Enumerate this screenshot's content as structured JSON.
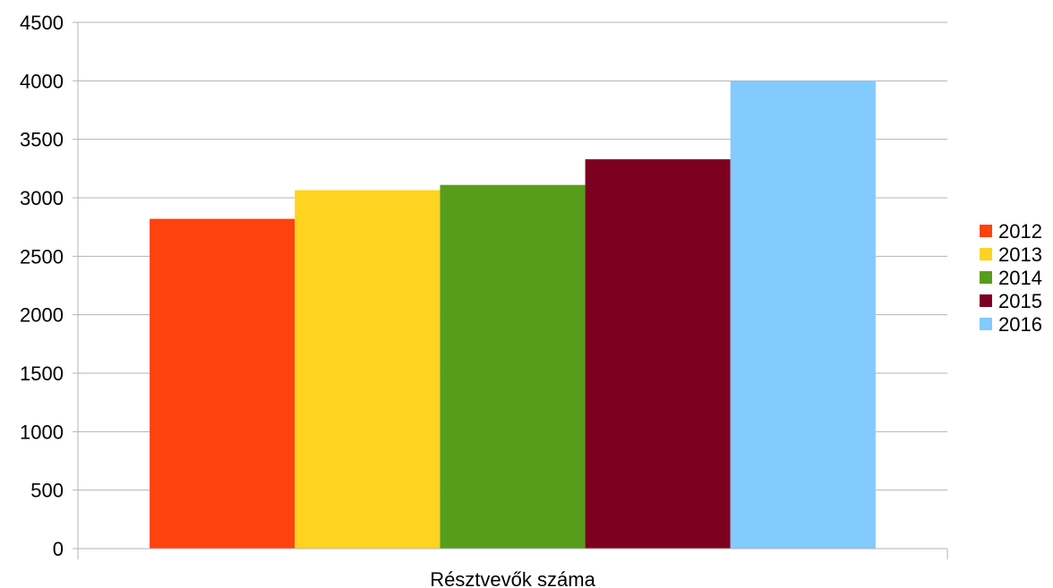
{
  "chart_data": {
    "type": "bar",
    "categories": [
      "Résztvevők száma"
    ],
    "series": [
      {
        "name": "2012",
        "values": [
          2820
        ],
        "color": "#ff420e"
      },
      {
        "name": "2013",
        "values": [
          3065
        ],
        "color": "#ffd320"
      },
      {
        "name": "2014",
        "values": [
          3110
        ],
        "color": "#579d1c"
      },
      {
        "name": "2015",
        "values": [
          3330
        ],
        "color": "#7e0021"
      },
      {
        "name": "2016",
        "values": [
          4000
        ],
        "color": "#83caff"
      }
    ],
    "yticks": [
      "0",
      "500",
      "1000",
      "1500",
      "2000",
      "2500",
      "3000",
      "3500",
      "4000",
      "4500"
    ],
    "ylim": [
      0,
      4500
    ],
    "grid": true,
    "legend_position": "right",
    "title": "",
    "xlabel": "",
    "ylabel": ""
  }
}
